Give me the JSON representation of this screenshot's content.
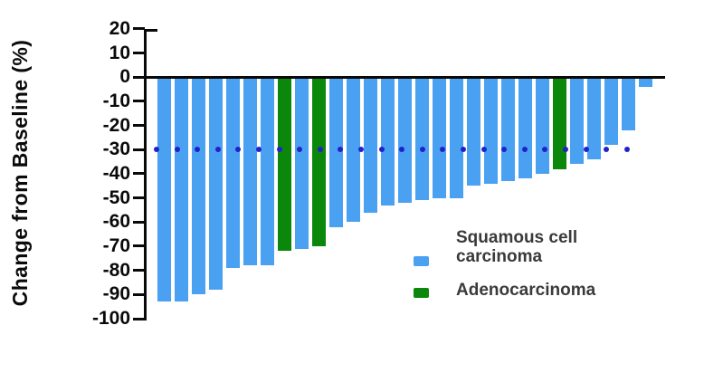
{
  "chart_data": {
    "type": "bar",
    "subtype": "waterfall",
    "title": "",
    "xlabel": "",
    "ylabel": "Change from Baseline (%)",
    "ylim": [
      -100,
      20
    ],
    "y_ticks": [
      20,
      10,
      0,
      -10,
      -20,
      -30,
      -40,
      -50,
      -60,
      -70,
      -80,
      -90,
      -100
    ],
    "grid": false,
    "legend_position": "bottom-right-inside",
    "reference_line": {
      "y": -30,
      "style": "dotted",
      "color": "#2222cc"
    },
    "series_colors": {
      "squamous": "#4aa1f2",
      "adeno": "#0b870b"
    },
    "bars": [
      {
        "value": -93,
        "group": "squamous"
      },
      {
        "value": -93,
        "group": "squamous"
      },
      {
        "value": -90,
        "group": "squamous"
      },
      {
        "value": -88,
        "group": "squamous"
      },
      {
        "value": -79,
        "group": "squamous"
      },
      {
        "value": -78,
        "group": "squamous"
      },
      {
        "value": -78,
        "group": "squamous"
      },
      {
        "value": -72,
        "group": "adeno"
      },
      {
        "value": -71,
        "group": "squamous"
      },
      {
        "value": -70,
        "group": "adeno"
      },
      {
        "value": -62,
        "group": "squamous"
      },
      {
        "value": -60,
        "group": "squamous"
      },
      {
        "value": -56,
        "group": "squamous"
      },
      {
        "value": -53,
        "group": "squamous"
      },
      {
        "value": -52,
        "group": "squamous"
      },
      {
        "value": -51,
        "group": "squamous"
      },
      {
        "value": -50,
        "group": "squamous"
      },
      {
        "value": -50,
        "group": "squamous"
      },
      {
        "value": -45,
        "group": "squamous"
      },
      {
        "value": -44,
        "group": "squamous"
      },
      {
        "value": -43,
        "group": "squamous"
      },
      {
        "value": -42,
        "group": "squamous"
      },
      {
        "value": -40,
        "group": "squamous"
      },
      {
        "value": -38,
        "group": "adeno"
      },
      {
        "value": -36,
        "group": "squamous"
      },
      {
        "value": -34,
        "group": "squamous"
      },
      {
        "value": -28,
        "group": "squamous"
      },
      {
        "value": -22,
        "group": "squamous"
      },
      {
        "value": -4,
        "group": "squamous"
      }
    ]
  },
  "y_axis": {
    "label": "Change from Baseline (%)"
  },
  "legend": [
    {
      "key": "squamous",
      "label": "Squamous cell carcinoma",
      "color": "#4aa1f2"
    },
    {
      "key": "adeno",
      "label": "Adenocarcinoma",
      "color": "#0b870b"
    }
  ]
}
